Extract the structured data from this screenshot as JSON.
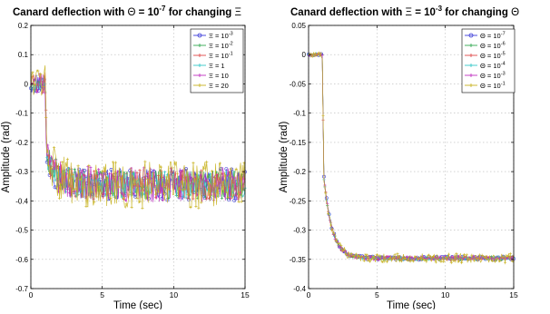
{
  "chart_data": [
    {
      "type": "line",
      "title_parts": [
        "Canard deflection with ",
        "Θ",
        " = 10",
        "-7",
        " for changing ",
        "Ξ"
      ],
      "xlabel": "Time (sec)",
      "ylabel": "Amplitude (rad)",
      "xlim": [
        0,
        15
      ],
      "ylim": [
        -0.7,
        0.2
      ],
      "x_ticks": [
        0,
        5,
        10,
        15
      ],
      "y_ticks": [
        0.2,
        0.1,
        0,
        -0.1,
        -0.2,
        -0.3,
        -0.4,
        -0.5,
        -0.6,
        -0.7
      ],
      "y_tick_labels": [
        "0.2",
        "0.1",
        "0",
        "-0.1",
        "-0.2",
        "-0.3",
        "-0.4",
        "-0.5",
        "-0.6",
        "-0.7"
      ],
      "grid": true,
      "legend_position": "top-right",
      "step_response": {
        "initial": 0.0,
        "step_time": 1.0,
        "spike": -0.25,
        "final": -0.345,
        "tau": 0.75
      },
      "series": [
        {
          "name_parts": [
            "Ξ = 10",
            "-3"
          ],
          "color": "#3b3bd8",
          "marker": "circle",
          "noise": 0.055
        },
        {
          "name_parts": [
            "Ξ = 10",
            "-2"
          ],
          "color": "#2fa84f",
          "marker": "plus",
          "noise": 0.05
        },
        {
          "name_parts": [
            "Ξ = 10",
            "-1"
          ],
          "color": "#e04848",
          "marker": "plus",
          "noise": 0.05
        },
        {
          "name_parts": [
            "Ξ = 1",
            ""
          ],
          "color": "#33c7c7",
          "marker": "plus",
          "noise": 0.045
        },
        {
          "name_parts": [
            "Ξ = 10",
            ""
          ],
          "color": "#c02fc0",
          "marker": "plus",
          "noise": 0.06
        },
        {
          "name_parts": [
            "Ξ = 20",
            ""
          ],
          "color": "#c8b21f",
          "marker": "plus",
          "noise": 0.08
        }
      ]
    },
    {
      "type": "line",
      "title_parts": [
        "Canard deflection with ",
        "Ξ",
        " = 10",
        "-3",
        " for changing ",
        "Θ"
      ],
      "xlabel": "Time (sec)",
      "ylabel": "Amplitude (rad)",
      "xlim": [
        0,
        15
      ],
      "ylim": [
        -0.4,
        0.05
      ],
      "x_ticks": [
        0,
        5,
        10,
        15
      ],
      "y_ticks": [
        0.05,
        0,
        -0.05,
        -0.1,
        -0.15,
        -0.2,
        -0.25,
        -0.3,
        -0.35,
        -0.4
      ],
      "y_tick_labels": [
        "0.05",
        "0",
        "-0.05",
        "-0.1",
        "-0.15",
        "-0.2",
        "-0.25",
        "-0.3",
        "-0.35",
        "-0.4"
      ],
      "grid": true,
      "legend_position": "top-right",
      "step_response": {
        "initial": 0.0,
        "step_time": 1.0,
        "spike": -0.21,
        "final": -0.348,
        "tau": 0.6
      },
      "series": [
        {
          "name_parts": [
            "Θ = 10",
            "-7"
          ],
          "color": "#3b3bd8",
          "marker": "circle",
          "noise": 0.003
        },
        {
          "name_parts": [
            "Θ = 10",
            "-6"
          ],
          "color": "#2fa84f",
          "marker": "plus",
          "noise": 0.003
        },
        {
          "name_parts": [
            "Θ = 10",
            "-5"
          ],
          "color": "#e04848",
          "marker": "plus",
          "noise": 0.003
        },
        {
          "name_parts": [
            "Θ = 10",
            "-4"
          ],
          "color": "#33c7c7",
          "marker": "plus",
          "noise": 0.003
        },
        {
          "name_parts": [
            "Θ = 10",
            "-3"
          ],
          "color": "#c02fc0",
          "marker": "plus",
          "noise": 0.004
        },
        {
          "name_parts": [
            "Θ = 10",
            "-1"
          ],
          "color": "#c8b21f",
          "marker": "plus",
          "noise": 0.008
        }
      ]
    }
  ]
}
